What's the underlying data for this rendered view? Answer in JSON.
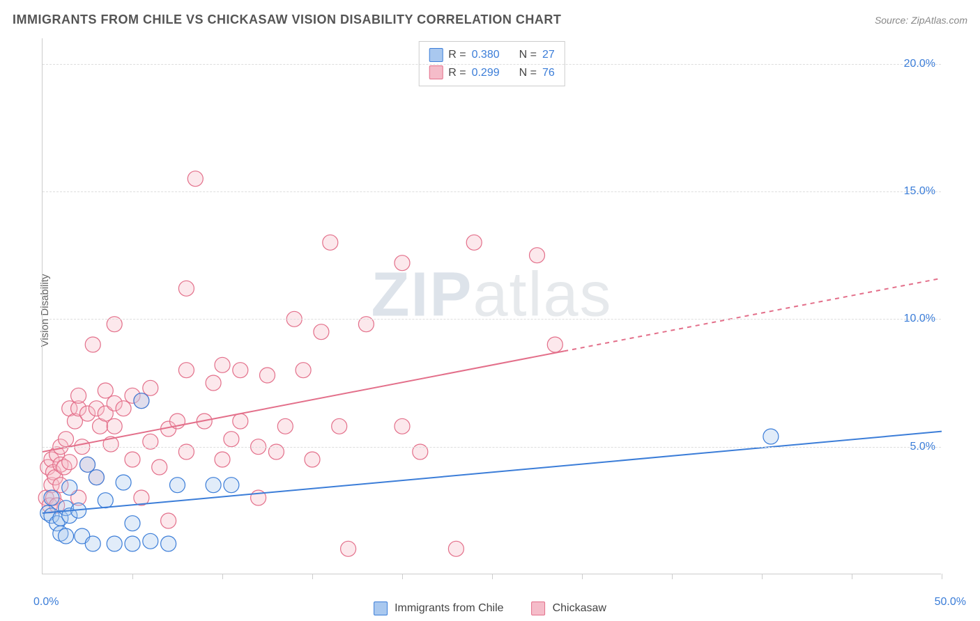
{
  "title": "IMMIGRANTS FROM CHILE VS CHICKASAW VISION DISABILITY CORRELATION CHART",
  "source_label": "Source: ZipAtlas.com",
  "y_axis_label": "Vision Disability",
  "watermark": {
    "part1": "ZIP",
    "part2": "atlas"
  },
  "chart": {
    "type": "scatter",
    "background_color": "#ffffff",
    "grid_color": "#dddddd",
    "axis_color": "#cccccc",
    "xlim": [
      0,
      50
    ],
    "ylim": [
      0,
      21
    ],
    "y_ticks": [
      5,
      10,
      15,
      20
    ],
    "y_tick_labels": [
      "5.0%",
      "10.0%",
      "15.0%",
      "20.0%"
    ],
    "x_ticks": [
      5,
      10,
      15,
      20,
      25,
      30,
      35,
      40,
      45,
      50
    ],
    "x_label_0": "0.0%",
    "x_label_50": "50.0%",
    "marker_radius": 11,
    "marker_fill_opacity": 0.35,
    "line_width": 2,
    "series": [
      {
        "name": "Immigrants from Chile",
        "color": "#3b7dd8",
        "fill": "#a9c8ef",
        "R": "0.380",
        "N": "27",
        "points": [
          [
            0.3,
            2.4
          ],
          [
            0.5,
            2.3
          ],
          [
            0.5,
            3.0
          ],
          [
            0.8,
            2.0
          ],
          [
            1.0,
            2.2
          ],
          [
            1.0,
            1.6
          ],
          [
            1.3,
            1.5
          ],
          [
            1.3,
            2.6
          ],
          [
            1.5,
            2.3
          ],
          [
            1.5,
            3.4
          ],
          [
            2.0,
            2.5
          ],
          [
            2.2,
            1.5
          ],
          [
            2.5,
            4.3
          ],
          [
            2.8,
            1.2
          ],
          [
            3.0,
            3.8
          ],
          [
            3.5,
            2.9
          ],
          [
            4.0,
            1.2
          ],
          [
            4.5,
            3.6
          ],
          [
            5.0,
            1.2
          ],
          [
            5.0,
            2.0
          ],
          [
            5.5,
            6.8
          ],
          [
            6.0,
            1.3
          ],
          [
            7.0,
            1.2
          ],
          [
            7.5,
            3.5
          ],
          [
            9.5,
            3.5
          ],
          [
            10.5,
            3.5
          ],
          [
            40.5,
            5.4
          ]
        ],
        "trend": {
          "x1": 0,
          "y1": 2.4,
          "x2": 50,
          "y2": 5.6,
          "dash_from_x": 50
        }
      },
      {
        "name": "Chickasaw",
        "color": "#e36f8a",
        "fill": "#f5bcc9",
        "R": "0.299",
        "N": "76",
        "points": [
          [
            0.2,
            3.0
          ],
          [
            0.3,
            4.2
          ],
          [
            0.4,
            2.7
          ],
          [
            0.5,
            3.5
          ],
          [
            0.5,
            4.5
          ],
          [
            0.6,
            3.0
          ],
          [
            0.6,
            4.0
          ],
          [
            0.7,
            3.8
          ],
          [
            0.8,
            4.7
          ],
          [
            0.8,
            2.7
          ],
          [
            1.0,
            3.5
          ],
          [
            1.0,
            4.3
          ],
          [
            1.0,
            5.0
          ],
          [
            1.2,
            4.2
          ],
          [
            1.3,
            5.3
          ],
          [
            1.5,
            6.5
          ],
          [
            1.5,
            4.4
          ],
          [
            1.8,
            6.0
          ],
          [
            2.0,
            6.5
          ],
          [
            2.0,
            3.0
          ],
          [
            2.0,
            7.0
          ],
          [
            2.2,
            5.0
          ],
          [
            2.5,
            6.3
          ],
          [
            2.5,
            4.3
          ],
          [
            2.8,
            9.0
          ],
          [
            3.0,
            6.5
          ],
          [
            3.0,
            3.8
          ],
          [
            3.2,
            5.8
          ],
          [
            3.5,
            7.2
          ],
          [
            3.5,
            6.3
          ],
          [
            3.8,
            5.1
          ],
          [
            4.0,
            6.7
          ],
          [
            4.0,
            5.8
          ],
          [
            4.0,
            9.8
          ],
          [
            4.5,
            6.5
          ],
          [
            5.0,
            7.0
          ],
          [
            5.0,
            4.5
          ],
          [
            5.5,
            6.8
          ],
          [
            5.5,
            3.0
          ],
          [
            6.0,
            7.3
          ],
          [
            6.0,
            5.2
          ],
          [
            6.5,
            4.2
          ],
          [
            7.0,
            5.7
          ],
          [
            7.0,
            2.1
          ],
          [
            7.5,
            6.0
          ],
          [
            8.0,
            8.0
          ],
          [
            8.0,
            4.8
          ],
          [
            8.0,
            11.2
          ],
          [
            8.5,
            15.5
          ],
          [
            9.0,
            6.0
          ],
          [
            9.5,
            7.5
          ],
          [
            10.0,
            4.5
          ],
          [
            10.0,
            8.2
          ],
          [
            10.5,
            5.3
          ],
          [
            11.0,
            6.0
          ],
          [
            11.0,
            8.0
          ],
          [
            12.0,
            5.0
          ],
          [
            12.0,
            3.0
          ],
          [
            12.5,
            7.8
          ],
          [
            13.0,
            4.8
          ],
          [
            13.5,
            5.8
          ],
          [
            14.0,
            10.0
          ],
          [
            14.5,
            8.0
          ],
          [
            15.0,
            4.5
          ],
          [
            15.5,
            9.5
          ],
          [
            16.0,
            13.0
          ],
          [
            16.5,
            5.8
          ],
          [
            17.0,
            1.0
          ],
          [
            18.0,
            9.8
          ],
          [
            20.0,
            12.2
          ],
          [
            20.0,
            5.8
          ],
          [
            21.0,
            4.8
          ],
          [
            23.0,
            1.0
          ],
          [
            24.0,
            13.0
          ],
          [
            27.5,
            12.5
          ],
          [
            28.5,
            9.0
          ]
        ],
        "trend": {
          "x1": 0,
          "y1": 4.8,
          "x2": 50,
          "y2": 11.6,
          "dash_from_x": 29
        }
      }
    ]
  },
  "legend_top": {
    "r_label": "R =",
    "n_label": "N ="
  },
  "legend_bottom": [
    {
      "label": "Immigrants from Chile"
    },
    {
      "label": "Chickasaw"
    }
  ]
}
